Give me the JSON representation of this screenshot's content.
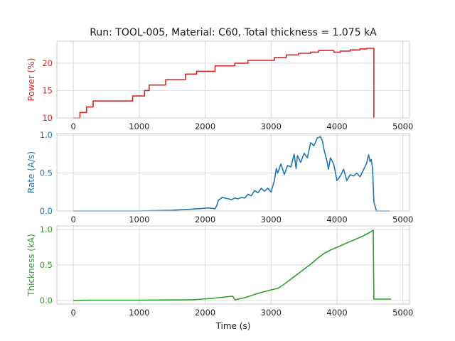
{
  "title": "Run: TOOL-005, Material: C60, Total thickness = 1.075 kA",
  "chart_data": [
    {
      "type": "line",
      "ylabel": "Power (%)",
      "xlim": [
        -250,
        5100
      ],
      "ylim": [
        10,
        24
      ],
      "xticks": [
        0,
        1000,
        2000,
        3000,
        4000,
        5000
      ],
      "yticks": [
        10,
        15,
        20
      ],
      "grid": true,
      "color": "#d62728",
      "series": [
        {
          "x": [
            0,
            100,
            100,
            200,
            200,
            300,
            300,
            900,
            900,
            1080,
            1080,
            1150,
            1150,
            1400,
            1400,
            1700,
            1700,
            1870,
            1870,
            2150,
            2150,
            2450,
            2450,
            2650,
            2650,
            3050,
            3050,
            3230,
            3230,
            3420,
            3420,
            3600,
            3600,
            3720,
            3720,
            3950,
            3950,
            4050,
            4050,
            4200,
            4200,
            4350,
            4350,
            4450,
            4450,
            4560,
            4560
          ],
          "y": [
            10,
            10,
            11,
            11,
            12,
            12,
            13.1,
            13.1,
            14,
            14,
            15,
            15,
            16,
            16,
            17,
            17,
            18,
            18,
            18.5,
            18.5,
            19.5,
            19.5,
            20,
            20,
            20.5,
            20.5,
            21,
            21,
            21.5,
            21.5,
            21.8,
            21.8,
            22,
            22,
            22.3,
            22.3,
            22,
            22,
            22.2,
            22.2,
            22.4,
            22.4,
            22.6,
            22.6,
            22.7,
            22.7,
            10
          ]
        }
      ]
    },
    {
      "type": "line",
      "ylabel": "Rate (A/s)",
      "xlim": [
        -250,
        5100
      ],
      "ylim": [
        0,
        1.02
      ],
      "xticks": [
        0,
        1000,
        2000,
        3000,
        4000,
        5000
      ],
      "yticks": [
        0.0,
        0.5,
        1.0
      ],
      "ytick_labels": [
        "0.0",
        "0.5",
        "1.0"
      ],
      "grid": true,
      "color": "#1f77b4",
      "series": [
        {
          "x": [
            0,
            1000,
            1200,
            1500,
            1700,
            1900,
            2050,
            2150,
            2180,
            2200,
            2260,
            2300,
            2350,
            2400,
            2450,
            2500,
            2550,
            2600,
            2650,
            2700,
            2750,
            2800,
            2850,
            2900,
            2950,
            3000,
            3050,
            3080,
            3100,
            3150,
            3200,
            3250,
            3300,
            3350,
            3380,
            3400,
            3450,
            3500,
            3550,
            3580,
            3600,
            3650,
            3700,
            3750,
            3780,
            3800,
            3850,
            3870,
            3900,
            3950,
            4000,
            4050,
            4100,
            4150,
            4200,
            4250,
            4300,
            4350,
            4400,
            4450,
            4480,
            4500,
            4520,
            4540,
            4560,
            4600,
            4800
          ],
          "y": [
            0,
            0,
            0.005,
            0.01,
            0.02,
            0.03,
            0.04,
            0.03,
            0.08,
            0.14,
            0.18,
            0.17,
            0.16,
            0.15,
            0.17,
            0.16,
            0.18,
            0.17,
            0.22,
            0.2,
            0.27,
            0.24,
            0.3,
            0.26,
            0.3,
            0.25,
            0.4,
            0.56,
            0.5,
            0.62,
            0.48,
            0.6,
            0.58,
            0.75,
            0.56,
            0.73,
            0.64,
            0.76,
            0.7,
            0.82,
            0.9,
            0.86,
            0.96,
            0.98,
            0.92,
            0.82,
            0.65,
            0.55,
            0.7,
            0.62,
            0.4,
            0.46,
            0.55,
            0.4,
            0.48,
            0.46,
            0.5,
            0.45,
            0.54,
            0.63,
            0.74,
            0.65,
            0.68,
            0.55,
            0.12,
            0.0,
            0.0
          ]
        }
      ]
    },
    {
      "type": "line",
      "ylabel": "Thickness (kA)",
      "xlabel": "Time (s)",
      "xlim": [
        -250,
        5100
      ],
      "ylim": [
        -0.05,
        1.05
      ],
      "xticks": [
        0,
        1000,
        2000,
        3000,
        4000,
        5000
      ],
      "yticks": [
        0.0,
        0.5,
        1.0
      ],
      "ytick_labels": [
        "0.0",
        "0.5",
        "1.0"
      ],
      "grid": true,
      "color": "#2ca02c",
      "series": [
        {
          "x": [
            0,
            250,
            1000,
            1800,
            2100,
            2400,
            2420,
            2450,
            2600,
            2800,
            3000,
            3100,
            3200,
            3400,
            3600,
            3700,
            3800,
            3900,
            4000,
            4100,
            4200,
            4300,
            4400,
            4500,
            4550,
            4560,
            4600,
            4820
          ],
          "y": [
            0,
            0.005,
            0.005,
            0.01,
            0.03,
            0.06,
            0.06,
            0.01,
            0.04,
            0.1,
            0.15,
            0.17,
            0.23,
            0.37,
            0.51,
            0.59,
            0.66,
            0.71,
            0.75,
            0.79,
            0.83,
            0.87,
            0.91,
            0.96,
            0.99,
            0.02,
            0.02,
            0.02
          ]
        }
      ]
    }
  ]
}
